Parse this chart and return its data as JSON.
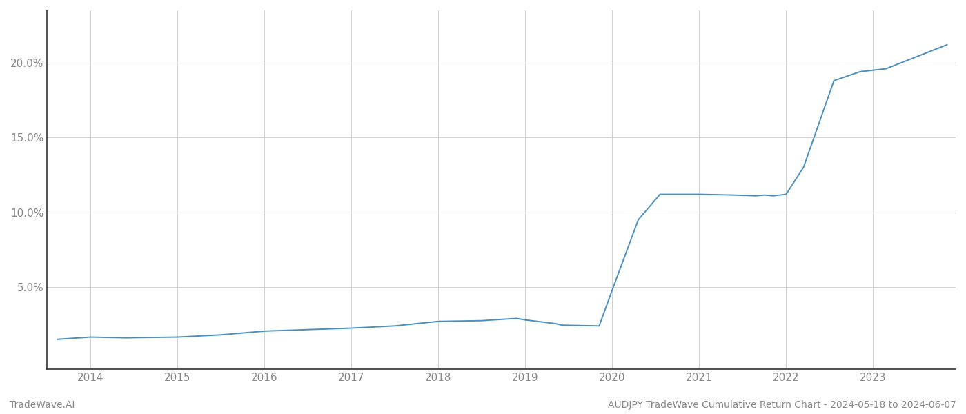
{
  "title": "",
  "footer_left": "TradeWave.AI",
  "footer_right": "AUDJPY TradeWave Cumulative Return Chart - 2024-05-18 to 2024-06-07",
  "line_color": "#4a8fc0",
  "background_color": "#ffffff",
  "grid_color": "#d0d0d0",
  "x_values": [
    2013.62,
    2014.0,
    2014.4,
    2015.0,
    2015.5,
    2016.0,
    2016.5,
    2017.0,
    2017.5,
    2018.0,
    2018.5,
    2018.9,
    2019.0,
    2019.35,
    2019.42,
    2019.85,
    2020.0,
    2020.3,
    2020.55,
    2021.0,
    2021.4,
    2021.65,
    2021.75,
    2021.85,
    2022.0,
    2022.2,
    2022.55,
    2022.85,
    2023.0,
    2023.15,
    2023.5,
    2023.85
  ],
  "y_values": [
    1.5,
    1.65,
    1.6,
    1.65,
    1.8,
    2.05,
    2.15,
    2.25,
    2.4,
    2.7,
    2.75,
    2.9,
    2.8,
    2.55,
    2.45,
    2.4,
    4.8,
    9.5,
    11.2,
    11.2,
    11.15,
    11.1,
    11.15,
    11.1,
    11.2,
    13.0,
    18.8,
    19.4,
    19.5,
    19.6,
    20.4,
    21.2
  ],
  "xlim": [
    2013.5,
    2023.95
  ],
  "ylim": [
    -0.5,
    23.5
  ],
  "xticks": [
    2014,
    2015,
    2016,
    2017,
    2018,
    2019,
    2020,
    2021,
    2022,
    2023
  ],
  "yticks": [
    5.0,
    10.0,
    15.0,
    20.0
  ],
  "ytick_labels": [
    "5.0%",
    "10.0%",
    "15.0%",
    "20.0%"
  ],
  "line_width": 1.4,
  "figsize": [
    14,
    6
  ],
  "dpi": 100
}
